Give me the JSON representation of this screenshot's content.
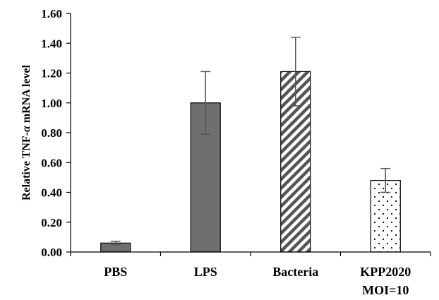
{
  "chart_data": {
    "type": "bar",
    "title": "",
    "xlabel": "",
    "ylabel_parts": [
      "Relative TNF-",
      "α",
      " mRNA level"
    ],
    "ylim": [
      0,
      1.6
    ],
    "yticks": [
      "0.00",
      "0.20",
      "0.40",
      "0.60",
      "0.80",
      "1.00",
      "1.20",
      "1.40",
      "1.60"
    ],
    "grid": false,
    "categories": [
      [
        "PBS"
      ],
      [
        "LPS"
      ],
      [
        "Bacteria"
      ],
      [
        "KPP2020",
        "MOI=10"
      ]
    ],
    "values": [
      0.06,
      1.0,
      1.21,
      0.48
    ],
    "error": [
      0.012,
      0.21,
      0.23,
      0.08
    ],
    "fills": [
      "solid-dark",
      "solid-dark",
      "diagonal-hatch",
      "dotted"
    ],
    "colors": {
      "bar_dark": "#6f6f6f",
      "bar_light": "#ffffff",
      "outline": "#000000",
      "error_bar": "#555555"
    }
  }
}
